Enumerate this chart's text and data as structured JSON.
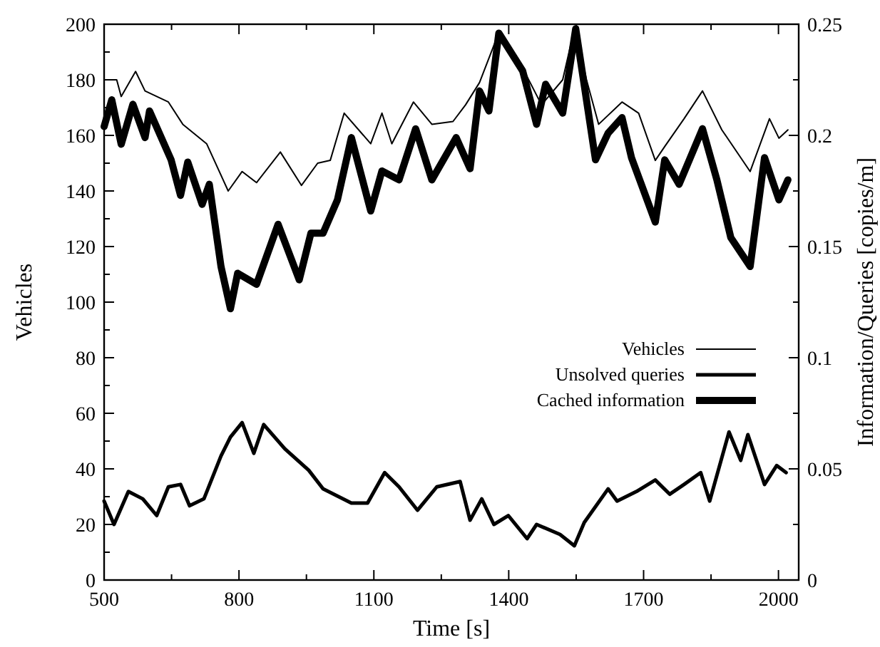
{
  "chart_data": {
    "type": "line",
    "xlabel": "Time [s]",
    "ylabel": "Vehicles",
    "y2label": "Information/Queries [copies/m]",
    "xlim": [
      500,
      2045
    ],
    "xticks": [
      500,
      {
        "value": 650,
        "label": null
      },
      800,
      {
        "value": 950,
        "label": null
      },
      1100,
      {
        "value": 1250,
        "label": null
      },
      1400,
      {
        "value": 1550,
        "label": null
      },
      1700,
      {
        "value": 1850,
        "label": null
      },
      2000
    ],
    "ylim": [
      0,
      200
    ],
    "yticks": [
      0,
      {
        "value": 10,
        "label": null
      },
      20,
      {
        "value": 30,
        "label": null
      },
      40,
      {
        "value": 50,
        "label": null
      },
      60,
      {
        "value": 70,
        "label": null
      },
      80,
      {
        "value": 90,
        "label": null
      },
      100,
      {
        "value": 110,
        "label": null
      },
      120,
      {
        "value": 130,
        "label": null
      },
      140,
      {
        "value": 150,
        "label": null
      },
      160,
      {
        "value": 170,
        "label": null
      },
      180,
      {
        "value": 190,
        "label": null
      },
      200
    ],
    "y2lim": [
      0,
      0.25
    ],
    "y2ticks": [
      0,
      {
        "value": 0.025,
        "label": null
      },
      0.05,
      {
        "value": 0.075,
        "label": null
      },
      0.1,
      {
        "value": 0.125,
        "label": null
      },
      0.15,
      {
        "value": 0.175,
        "label": null
      },
      0.2,
      {
        "value": 0.225,
        "label": null
      },
      0.25
    ],
    "legend": "right",
    "grid": false,
    "line_style": "solid",
    "series": [
      {
        "name": "Vehicles",
        "color": "#000000",
        "x": [
          500,
          528,
          538,
          570,
          591,
          643,
          675,
          728,
          776,
          807,
          839,
          892,
          939,
          975,
          1003,
          1034,
          1093,
          1118,
          1140,
          1188,
          1229,
          1276,
          1304,
          1335,
          1378,
          1419,
          1473,
          1520,
          1547,
          1573,
          1600,
          1652,
          1689,
          1726,
          1747,
          1790,
          1831,
          1874,
          1937,
          1980,
          2001,
          2021
        ],
        "values": [
          180,
          180,
          174,
          183,
          176,
          172,
          164,
          157,
          140,
          147,
          143,
          154,
          142,
          150,
          151,
          168,
          157,
          168,
          157,
          172,
          164,
          165,
          171,
          179,
          197,
          188,
          171,
          180,
          199,
          180,
          164,
          172,
          168,
          151,
          156,
          166,
          176,
          162,
          147,
          166,
          159,
          162
        ]
      },
      {
        "name": "Unsolved queries",
        "color": "#000000",
        "axis": "y2",
        "x": [
          500,
          522,
          554,
          586,
          617,
          643,
          670,
          690,
          722,
          760,
          781,
          807,
          833,
          855,
          902,
          955,
          987,
          1050,
          1086,
          1124,
          1156,
          1197,
          1240,
          1292,
          1314,
          1340,
          1367,
          1399,
          1441,
          1462,
          1514,
          1546,
          1568,
          1621,
          1641,
          1684,
          1726,
          1758,
          1790,
          1827,
          1847,
          1890,
          1916,
          1932,
          1969,
          1996,
          2017
        ],
        "values": [
          0.0355,
          0.025,
          0.0398,
          0.0365,
          0.029,
          0.0419,
          0.043,
          0.0334,
          0.0365,
          0.0558,
          0.0643,
          0.0708,
          0.057,
          0.0699,
          0.059,
          0.0494,
          0.041,
          0.0346,
          0.0346,
          0.0483,
          0.0419,
          0.0314,
          0.0419,
          0.0443,
          0.0269,
          0.0365,
          0.025,
          0.029,
          0.0186,
          0.025,
          0.0205,
          0.0154,
          0.0259,
          0.041,
          0.0355,
          0.0398,
          0.045,
          0.0386,
          0.043,
          0.0483,
          0.0355,
          0.0666,
          0.0538,
          0.0654,
          0.043,
          0.0515,
          0.0483
        ]
      },
      {
        "name": "Cached information",
        "color": "#000000",
        "axis": "y2",
        "x": [
          500,
          517,
          538,
          564,
          591,
          601,
          649,
          670,
          686,
          718,
          734,
          760,
          781,
          797,
          839,
          887,
          934,
          960,
          987,
          1019,
          1050,
          1093,
          1118,
          1156,
          1193,
          1229,
          1283,
          1314,
          1335,
          1356,
          1378,
          1431,
          1462,
          1482,
          1520,
          1549,
          1593,
          1621,
          1652,
          1673,
          1726,
          1747,
          1779,
          1831,
          1863,
          1894,
          1937,
          1969,
          2001,
          2021
        ],
        "values": [
          0.204,
          0.216,
          0.196,
          0.214,
          0.199,
          0.211,
          0.189,
          0.173,
          0.188,
          0.169,
          0.178,
          0.141,
          0.122,
          0.138,
          0.133,
          0.16,
          0.135,
          0.156,
          0.156,
          0.171,
          0.199,
          0.166,
          0.184,
          0.18,
          0.203,
          0.18,
          0.199,
          0.185,
          0.22,
          0.211,
          0.246,
          0.229,
          0.205,
          0.223,
          0.21,
          0.248,
          0.189,
          0.201,
          0.208,
          0.19,
          0.161,
          0.189,
          0.178,
          0.203,
          0.18,
          0.154,
          0.141,
          0.19,
          0.171,
          0.18
        ]
      }
    ]
  }
}
